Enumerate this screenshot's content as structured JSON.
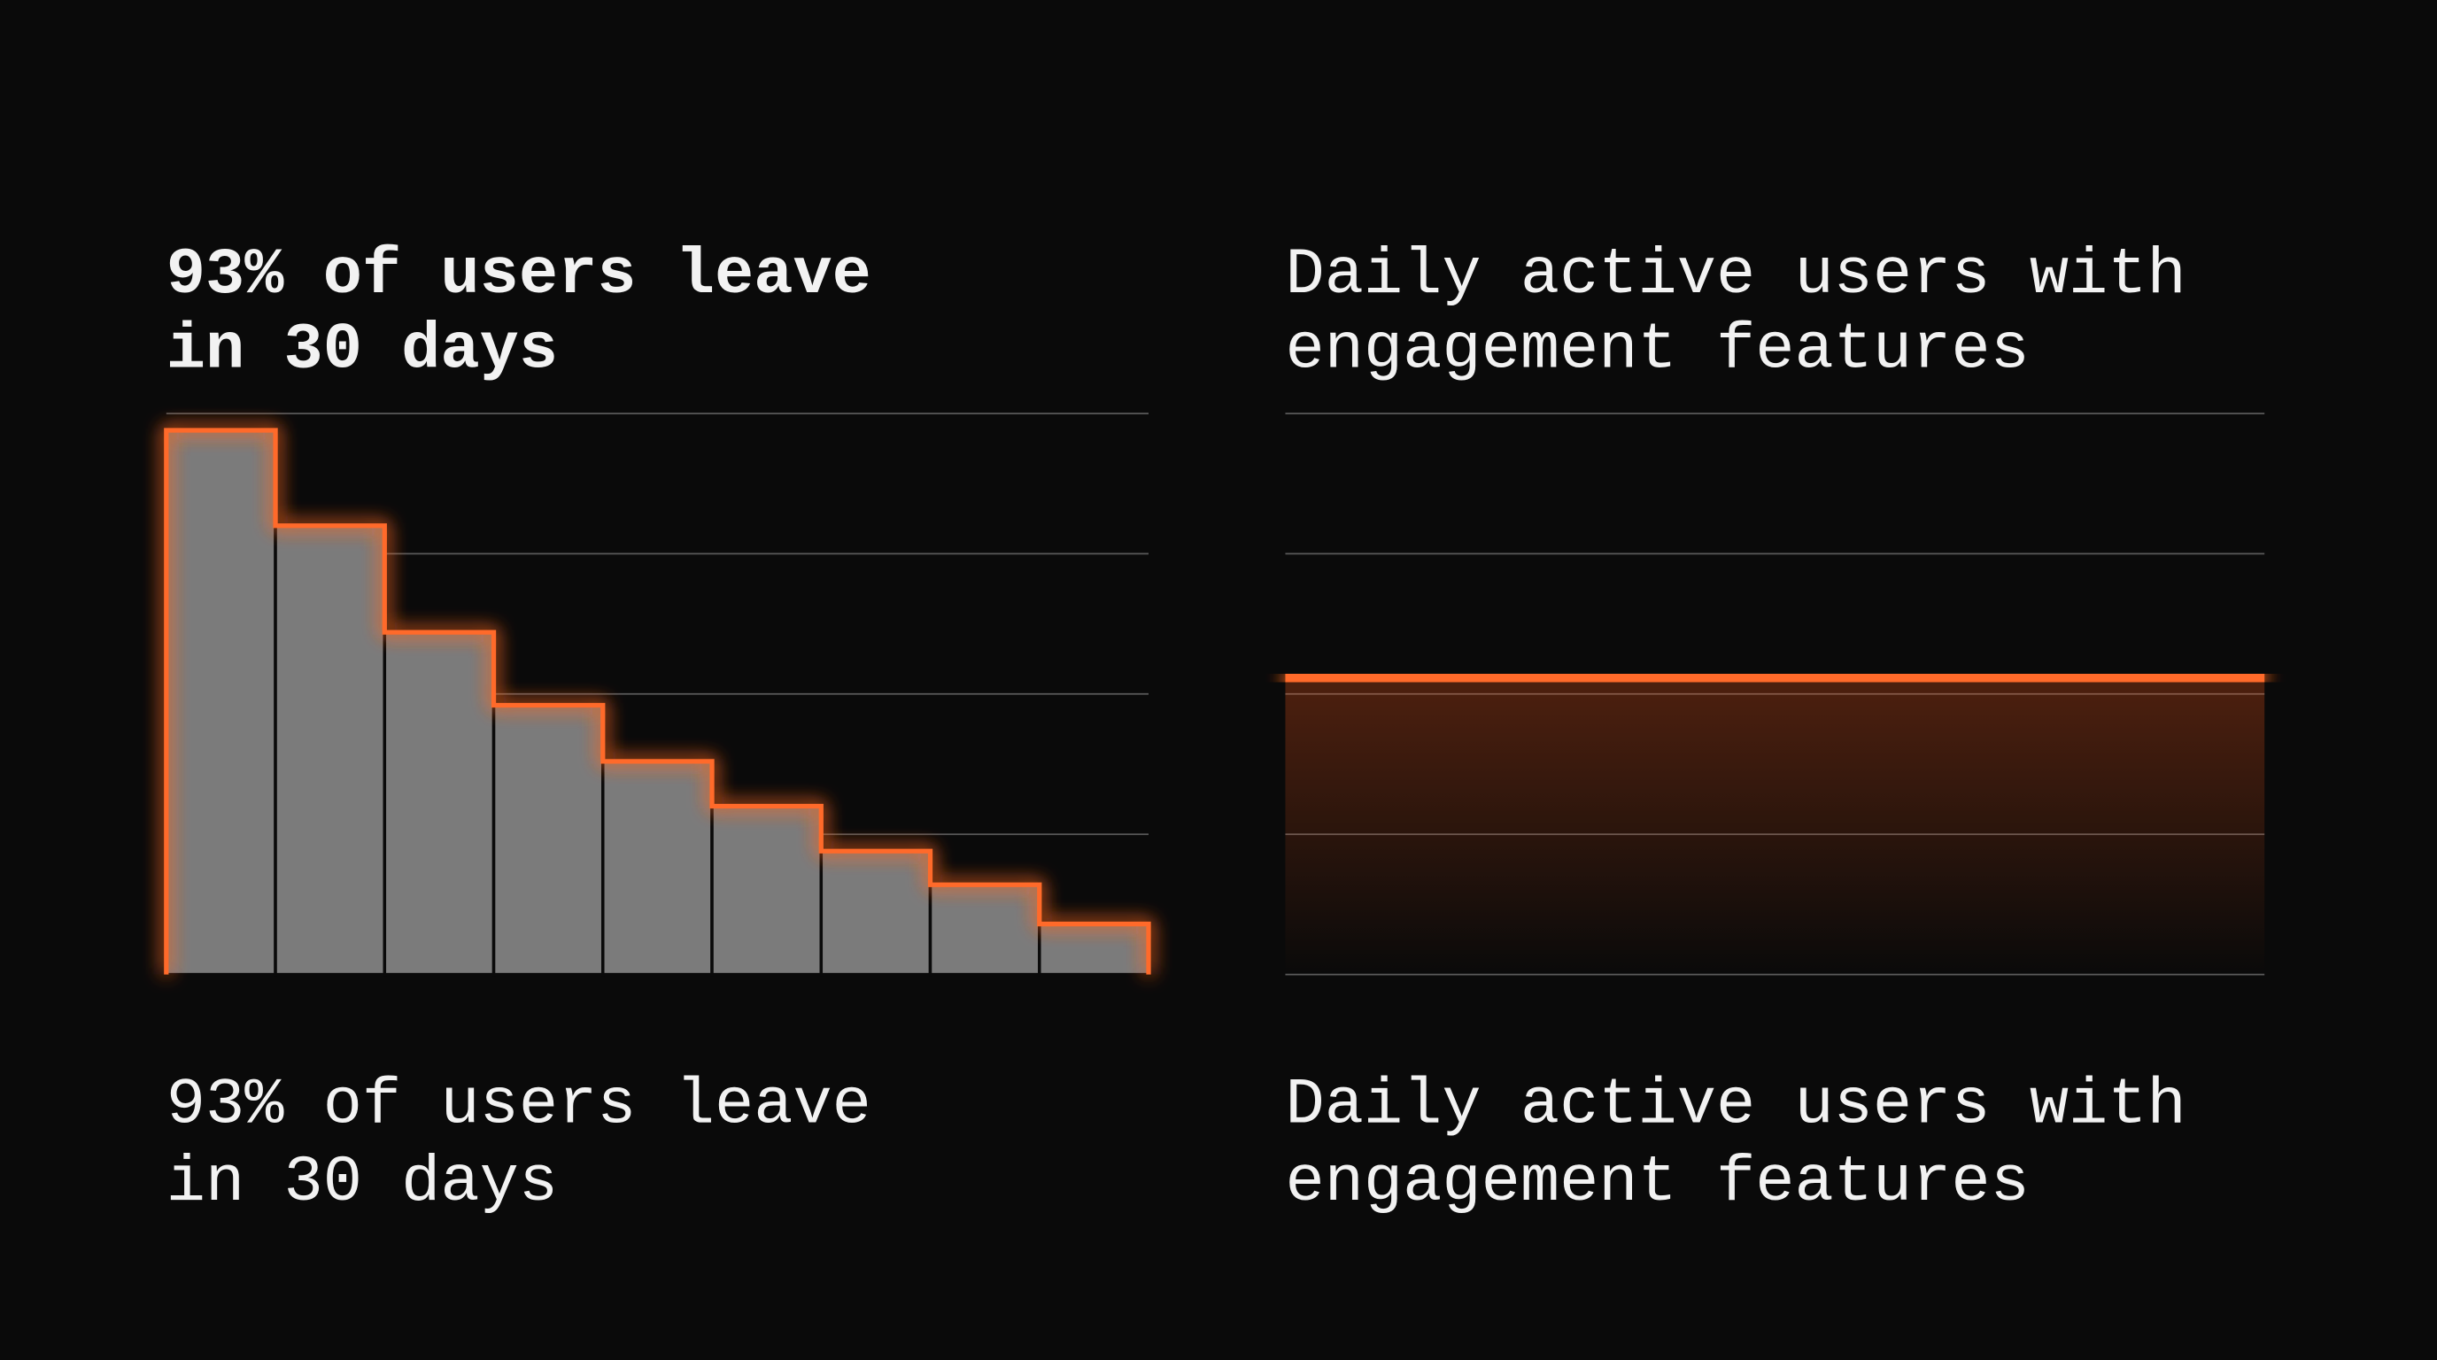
{
  "chart_data": [
    {
      "type": "bar",
      "title": [
        "93% of users leave",
        "in 30 days"
      ],
      "caption": [
        "93% of users leave",
        "in 30 days"
      ],
      "values": [
        97,
        80,
        61,
        48,
        38,
        30,
        22,
        16,
        9
      ],
      "color": "#7b7b7b",
      "edge_color": "#ff6a2b",
      "ylim": [
        0,
        100
      ],
      "yticks": [
        0,
        25,
        50,
        75,
        100
      ],
      "grid": true
    },
    {
      "type": "line",
      "title": [
        "Daily active users with",
        "engagement features"
      ],
      "caption": [
        "Daily active users with",
        "engagement features"
      ],
      "values": [
        52.5,
        53.2
      ],
      "color": "#ff6a2b",
      "ylim": [
        0,
        100
      ],
      "yticks": [
        0,
        25,
        50,
        75,
        100
      ],
      "grid": true
    }
  ]
}
